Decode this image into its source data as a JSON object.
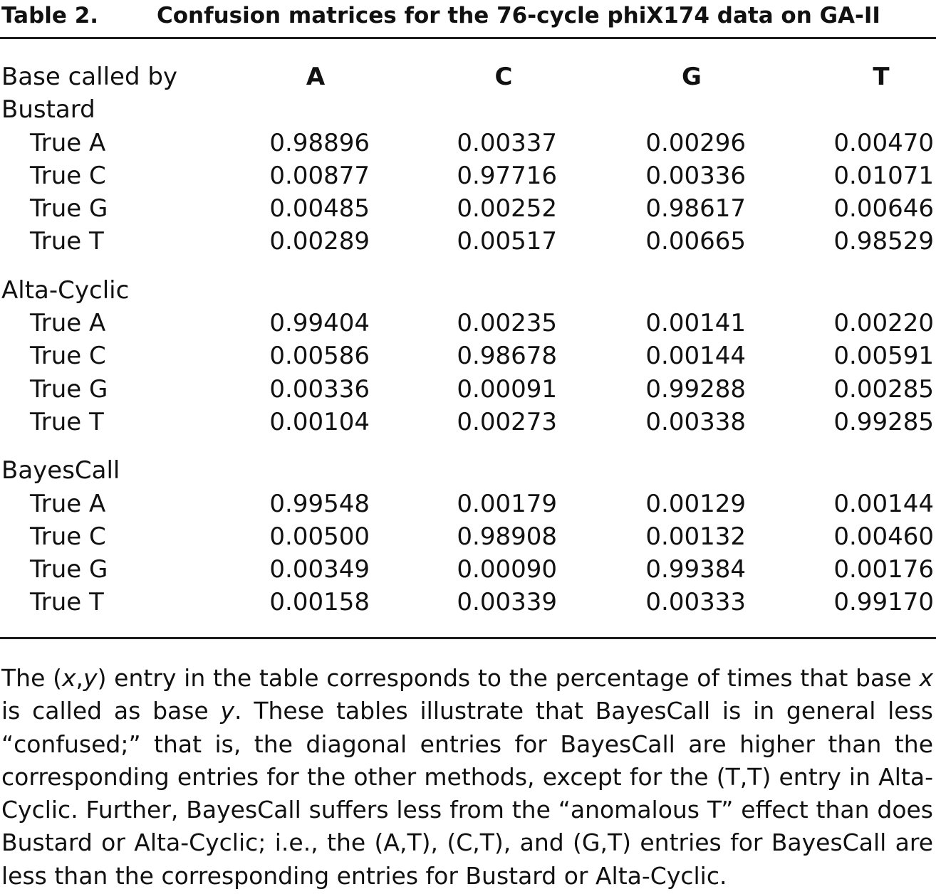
{
  "title": {
    "label": "Table 2.",
    "text": "Confusion matrices for the 76-cycle phiX174 data on GA-II"
  },
  "columns": [
    "A",
    "C",
    "G",
    "T"
  ],
  "sections": [
    {
      "name_line1": "Base called by",
      "name_line2": "Bustard",
      "rows": [
        {
          "label": "True A",
          "values": [
            "0.98896",
            "0.00337",
            "0.00296",
            "0.00470"
          ]
        },
        {
          "label": "True C",
          "values": [
            "0.00877",
            "0.97716",
            "0.00336",
            "0.01071"
          ]
        },
        {
          "label": "True G",
          "values": [
            "0.00485",
            "0.00252",
            "0.98617",
            "0.00646"
          ]
        },
        {
          "label": "True T",
          "values": [
            "0.00289",
            "0.00517",
            "0.00665",
            "0.98529"
          ]
        }
      ]
    },
    {
      "name_line1": "Alta-Cyclic",
      "rows": [
        {
          "label": "True A",
          "values": [
            "0.99404",
            "0.00235",
            "0.00141",
            "0.00220"
          ]
        },
        {
          "label": "True C",
          "values": [
            "0.00586",
            "0.98678",
            "0.00144",
            "0.00591"
          ]
        },
        {
          "label": "True G",
          "values": [
            "0.00336",
            "0.00091",
            "0.99288",
            "0.00285"
          ]
        },
        {
          "label": "True T",
          "values": [
            "0.00104",
            "0.00273",
            "0.00338",
            "0.99285"
          ]
        }
      ]
    },
    {
      "name_line1": "BayesCall",
      "rows": [
        {
          "label": "True A",
          "values": [
            "0.99548",
            "0.00179",
            "0.00129",
            "0.00144"
          ]
        },
        {
          "label": "True C",
          "values": [
            "0.00500",
            "0.98908",
            "0.00132",
            "0.00460"
          ]
        },
        {
          "label": "True G",
          "values": [
            "0.00349",
            "0.00090",
            "0.99384",
            "0.00176"
          ]
        },
        {
          "label": "True T",
          "values": [
            "0.00158",
            "0.00339",
            "0.00333",
            "0.99170"
          ]
        }
      ]
    }
  ],
  "footnote": {
    "p1": "The (",
    "x1": "x",
    "p2": ",",
    "y1": "y",
    "p3": ") entry in the table corresponds to the percentage of times that base ",
    "x2": "x",
    "p4": " is called as base ",
    "y2": "y",
    "p5": ". These tables illustrate that BayesCall is in general less “confused;” that is, the diagonal entries for BayesCall are higher than the corresponding entries for the other methods, except for the (T,T) entry in Alta-Cyclic. Further, BayesCall suffers less from the “anomalous T” effect than does Bustard or Alta-Cyclic; i.e., the (A,T), (C,T), and (G,T) entries for BayesCall are less than the corresponding entries for Bustard or Alta-Cyclic."
  }
}
